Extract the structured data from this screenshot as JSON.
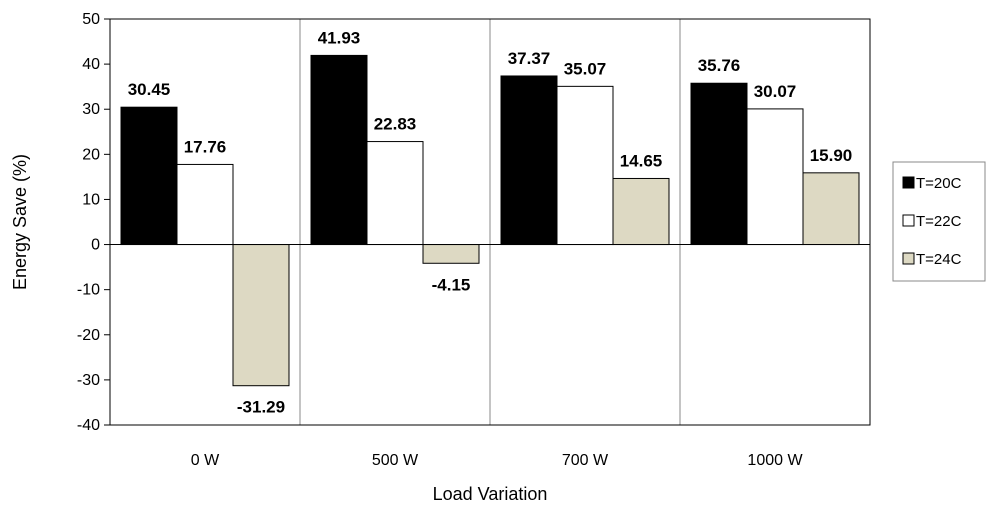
{
  "chart_data": {
    "type": "bar",
    "categories": [
      "0 W",
      "500 W",
      "700 W",
      "1000 W"
    ],
    "series": [
      {
        "name": "T=20C",
        "values": [
          30.45,
          41.93,
          37.37,
          35.76
        ],
        "labels": [
          "30.45",
          "41.93",
          "37.37",
          "35.76"
        ],
        "color": "#000000"
      },
      {
        "name": "T=22C",
        "values": [
          17.76,
          22.83,
          35.07,
          30.07
        ],
        "labels": [
          "17.76",
          "22.83",
          "35.07",
          "30.07"
        ],
        "color": "#ffffff"
      },
      {
        "name": "T=24C",
        "values": [
          -31.29,
          -4.15,
          14.65,
          15.9
        ],
        "labels": [
          "-31.29",
          "-4.15",
          "14.65",
          "15.90"
        ],
        "color": "#ddd9c3"
      }
    ],
    "title": "",
    "xlabel": "Load Variation",
    "ylabel": "Energy Save (%)",
    "ylim": [
      -40,
      50
    ],
    "yticks": [
      50,
      40,
      30,
      20,
      10,
      0,
      -10,
      -20,
      -30,
      -40
    ],
    "ytick_labels": [
      "50",
      "40",
      "30",
      "20",
      "10",
      "0",
      "-10",
      "-20",
      "-30",
      "-40"
    ],
    "grid": "vertical category separators",
    "legend_position": "right"
  }
}
